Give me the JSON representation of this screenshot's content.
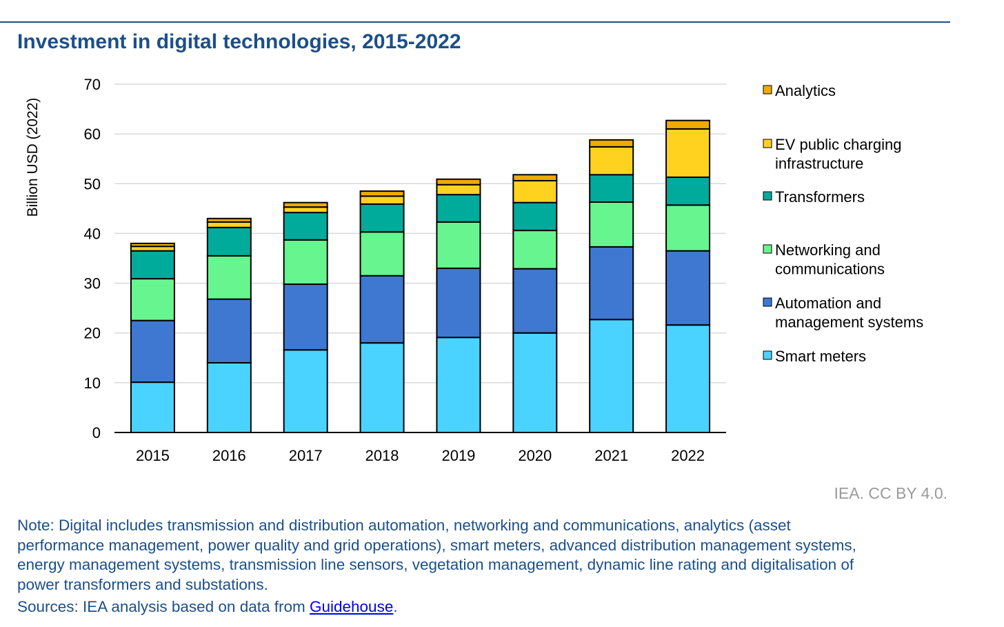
{
  "chart_data": {
    "type": "bar",
    "stacked": true,
    "title": "Investment in digital technologies, 2015-2022",
    "xlabel": "",
    "ylabel": "Billion USD (2022)",
    "ylim": [
      0,
      70
    ],
    "yticks": [
      0,
      10,
      20,
      30,
      40,
      50,
      60,
      70
    ],
    "grid": true,
    "legend_position": "right",
    "categories": [
      "2015",
      "2016",
      "2017",
      "2018",
      "2019",
      "2020",
      "2021",
      "2022"
    ],
    "series": [
      {
        "name": "Smart meters",
        "label_lines": [
          "Smart meters"
        ],
        "color": "#4ad3ff",
        "values": [
          10.1,
          14.0,
          16.6,
          18.0,
          19.1,
          20.0,
          22.7,
          21.6
        ]
      },
      {
        "name": "Automation and management systems",
        "label_lines": [
          "Automation and",
          "management systems"
        ],
        "color": "#3e78d1",
        "values": [
          12.4,
          12.8,
          13.2,
          13.5,
          13.9,
          12.9,
          14.6,
          14.9
        ]
      },
      {
        "name": "Networking and communications",
        "label_lines": [
          "Networking and",
          "communications"
        ],
        "color": "#66f58e",
        "values": [
          8.4,
          8.7,
          8.9,
          8.8,
          9.3,
          7.7,
          9.0,
          9.2
        ]
      },
      {
        "name": "Transformers",
        "label_lines": [
          "Transformers"
        ],
        "color": "#00ab9c",
        "values": [
          5.6,
          5.7,
          5.5,
          5.6,
          5.5,
          5.6,
          5.5,
          5.6
        ]
      },
      {
        "name": "EV public charging infrastructure",
        "label_lines": [
          "EV public charging",
          "infrastructure"
        ],
        "color": "#ffd21f",
        "values": [
          0.9,
          1.1,
          1.1,
          1.6,
          2.0,
          4.4,
          5.6,
          9.7
        ]
      },
      {
        "name": "Analytics",
        "label_lines": [
          "Analytics"
        ],
        "color": "#f0aa00",
        "values": [
          0.6,
          0.7,
          0.9,
          1.0,
          1.1,
          1.2,
          1.4,
          1.7
        ]
      }
    ]
  },
  "credit": "IEA. CC BY 4.0.",
  "note_lines": [
    "Note: Digital includes transmission and distribution automation, networking and communications, analytics (asset",
    "performance management, power quality and grid operations), smart meters, advanced distribution management systems,",
    "energy management systems, transmission line sensors, vegetation management, dynamic line rating and digitalisation of",
    "power transformers and substations."
  ],
  "sources": {
    "prefix": "Sources: IEA analysis based on data from ",
    "link": "Guidehouse",
    "suffix": "."
  }
}
